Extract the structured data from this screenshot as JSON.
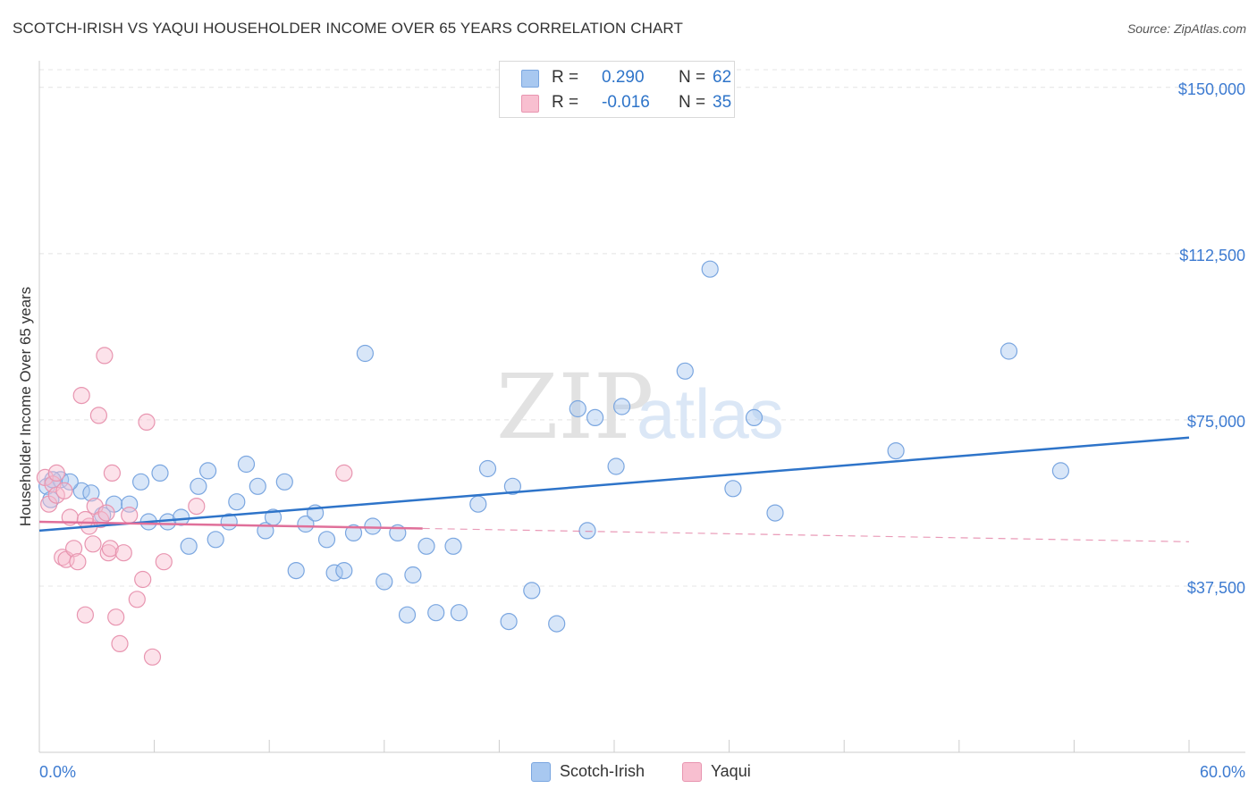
{
  "title": "SCOTCH-IRISH VS YAQUI HOUSEHOLDER INCOME OVER 65 YEARS CORRELATION CHART",
  "source": "Source: ZipAtlas.com",
  "watermark": {
    "zip": "ZIP",
    "atlas": "atlas"
  },
  "legend_top": {
    "rows": [
      {
        "label": "R =",
        "r_value": "0.290",
        "n_label": "N =",
        "n_value": "62",
        "color": "#a8c8f0",
        "border": "#7aa6e0"
      },
      {
        "label": "R =",
        "r_value": "-0.016",
        "n_label": "N =",
        "n_value": "35",
        "color": "#f8bfd0",
        "border": "#e895b0"
      }
    ]
  },
  "legend_bottom": [
    {
      "name": "Scotch-Irish",
      "color": "#a8c8f0",
      "border": "#7aa6e0"
    },
    {
      "name": "Yaqui",
      "color": "#f8bfd0",
      "border": "#e895b0"
    }
  ],
  "chart_data": {
    "type": "scatter",
    "title": "SCOTCH-IRISH VS YAQUI HOUSEHOLDER INCOME OVER 65 YEARS CORRELATION CHART",
    "xlabel": "",
    "ylabel": "Householder Income Over 65 years",
    "xlim": [
      0,
      60
    ],
    "ylim": [
      0,
      156000
    ],
    "x_tick_labels": [
      "0.0%",
      "60.0%"
    ],
    "y_ticks": [
      37500,
      75000,
      112500,
      150000
    ],
    "y_tick_labels": [
      "$37,500",
      "$75,000",
      "$112,500",
      "$150,000"
    ],
    "grid": true,
    "legend_position": "top-center",
    "series": [
      {
        "name": "Scotch-Irish",
        "color": "#7aa6e0",
        "fill": "rgba(168,200,240,0.45)",
        "trend_color": "#2e74c9",
        "trend": {
          "x": [
            0,
            60
          ],
          "y": [
            50000,
            71000
          ]
        },
        "points": [
          [
            0.4,
            60000
          ],
          [
            0.6,
            57000
          ],
          [
            1.1,
            61500
          ],
          [
            2.2,
            59000
          ],
          [
            2.7,
            58500
          ],
          [
            3.3,
            53500
          ],
          [
            3.9,
            56000
          ],
          [
            4.7,
            56000
          ],
          [
            5.3,
            61000
          ],
          [
            5.7,
            52000
          ],
          [
            6.3,
            63000
          ],
          [
            6.7,
            52000
          ],
          [
            7.4,
            53000
          ],
          [
            7.8,
            46500
          ],
          [
            8.3,
            60000
          ],
          [
            8.8,
            63500
          ],
          [
            9.2,
            48000
          ],
          [
            9.9,
            52000
          ],
          [
            10.3,
            56500
          ],
          [
            10.8,
            65000
          ],
          [
            11.4,
            60000
          ],
          [
            11.8,
            50000
          ],
          [
            12.2,
            53000
          ],
          [
            12.8,
            61000
          ],
          [
            13.4,
            41000
          ],
          [
            13.9,
            51500
          ],
          [
            14.4,
            54000
          ],
          [
            15.0,
            48000
          ],
          [
            15.4,
            40500
          ],
          [
            15.9,
            41000
          ],
          [
            16.4,
            49500
          ],
          [
            17.0,
            90000
          ],
          [
            17.4,
            51000
          ],
          [
            18.0,
            38500
          ],
          [
            18.7,
            49500
          ],
          [
            19.2,
            31000
          ],
          [
            19.5,
            40000
          ],
          [
            20.2,
            46500
          ],
          [
            20.7,
            31500
          ],
          [
            21.6,
            46500
          ],
          [
            21.9,
            31500
          ],
          [
            22.9,
            56000
          ],
          [
            23.4,
            64000
          ],
          [
            24.5,
            29500
          ],
          [
            24.7,
            60000
          ],
          [
            25.7,
            36500
          ],
          [
            27.0,
            29000
          ],
          [
            28.1,
            77500
          ],
          [
            28.6,
            50000
          ],
          [
            29.0,
            75500
          ],
          [
            30.1,
            64500
          ],
          [
            30.4,
            78000
          ],
          [
            33.7,
            86000
          ],
          [
            35.0,
            109000
          ],
          [
            36.2,
            59500
          ],
          [
            37.3,
            75500
          ],
          [
            38.4,
            54000
          ],
          [
            44.7,
            68000
          ],
          [
            50.6,
            90500
          ],
          [
            53.3,
            63500
          ],
          [
            0.7,
            61500
          ],
          [
            1.6,
            61000
          ]
        ]
      },
      {
        "name": "Yaqui",
        "color": "#e895b0",
        "fill": "rgba(248,191,208,0.45)",
        "trend_color": "#e0709a",
        "trend": {
          "x": [
            0,
            20
          ],
          "y": [
            52000,
            50500
          ]
        },
        "trend_dashed": {
          "x": [
            20,
            60
          ],
          "y": [
            50500,
            47500
          ]
        },
        "points": [
          [
            0.3,
            62000
          ],
          [
            0.5,
            56000
          ],
          [
            0.7,
            60500
          ],
          [
            0.9,
            63000
          ],
          [
            1.2,
            44000
          ],
          [
            1.4,
            43500
          ],
          [
            1.6,
            53000
          ],
          [
            1.8,
            46000
          ],
          [
            2.0,
            43000
          ],
          [
            2.2,
            80500
          ],
          [
            2.4,
            31000
          ],
          [
            2.6,
            51000
          ],
          [
            2.8,
            47000
          ],
          [
            2.9,
            55500
          ],
          [
            3.1,
            76000
          ],
          [
            3.2,
            52500
          ],
          [
            3.4,
            89500
          ],
          [
            3.5,
            54000
          ],
          [
            3.6,
            45000
          ],
          [
            3.7,
            46000
          ],
          [
            3.8,
            63000
          ],
          [
            4.0,
            30500
          ],
          [
            4.2,
            24500
          ],
          [
            4.4,
            45000
          ],
          [
            4.7,
            53500
          ],
          [
            5.1,
            34500
          ],
          [
            5.4,
            39000
          ],
          [
            5.6,
            74500
          ],
          [
            5.9,
            21500
          ],
          [
            6.5,
            43000
          ],
          [
            8.2,
            55500
          ],
          [
            15.9,
            63000
          ],
          [
            0.9,
            58000
          ],
          [
            1.3,
            59000
          ],
          [
            2.4,
            52500
          ]
        ]
      }
    ]
  }
}
